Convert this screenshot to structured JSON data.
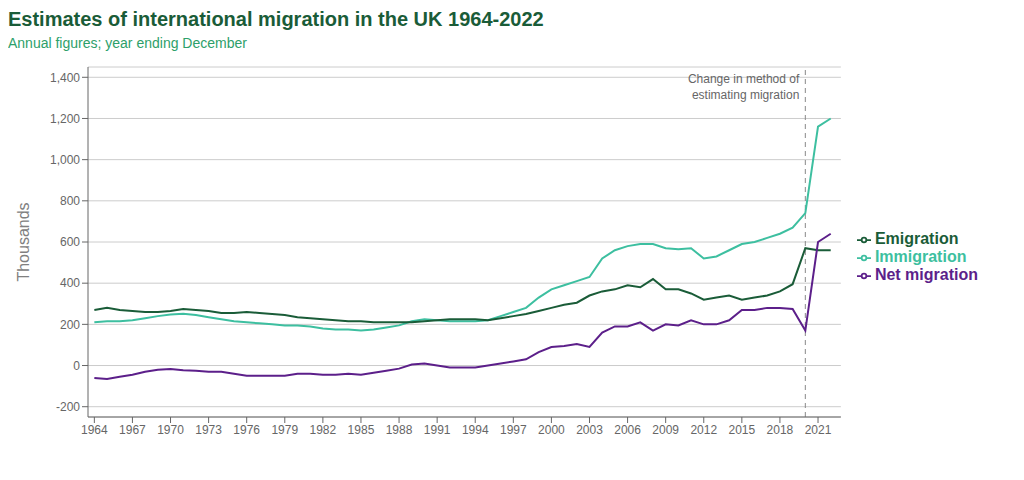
{
  "chart_data": {
    "type": "line",
    "title": "Estimates of international migration in the UK 1964-2022",
    "subtitle": "Annual figures; year ending December",
    "y_label": "Thousands",
    "x": [
      1964,
      1965,
      1966,
      1967,
      1968,
      1969,
      1970,
      1971,
      1972,
      1973,
      1974,
      1975,
      1976,
      1977,
      1978,
      1979,
      1980,
      1981,
      1982,
      1983,
      1984,
      1985,
      1986,
      1987,
      1988,
      1989,
      1990,
      1991,
      1992,
      1993,
      1994,
      1995,
      1996,
      1997,
      1998,
      1999,
      2000,
      2001,
      2002,
      2003,
      2004,
      2005,
      2006,
      2007,
      2008,
      2009,
      2010,
      2011,
      2012,
      2013,
      2014,
      2015,
      2016,
      2017,
      2018,
      2019,
      2020,
      2021,
      2022
    ],
    "series": [
      {
        "name": "Immigration",
        "color": "#3dbfa0",
        "values": [
          210,
          215,
          215,
          220,
          230,
          240,
          248,
          252,
          245,
          235,
          225,
          215,
          210,
          205,
          200,
          195,
          195,
          190,
          180,
          175,
          175,
          170,
          175,
          185,
          195,
          215,
          225,
          220,
          215,
          215,
          215,
          220,
          240,
          260,
          280,
          330,
          370,
          390,
          410,
          430,
          520,
          560,
          580,
          590,
          590,
          570,
          565,
          570,
          520,
          530,
          560,
          590,
          600,
          620,
          640,
          670,
          740,
          1160,
          1200
        ]
      },
      {
        "name": "Emigration",
        "color": "#1a5c38",
        "values": [
          270,
          280,
          270,
          265,
          260,
          260,
          265,
          275,
          270,
          265,
          255,
          255,
          260,
          255,
          250,
          245,
          235,
          230,
          225,
          220,
          215,
          215,
          210,
          210,
          210,
          210,
          215,
          220,
          225,
          225,
          225,
          220,
          230,
          240,
          250,
          265,
          280,
          295,
          305,
          340,
          360,
          370,
          390,
          380,
          420,
          370,
          370,
          350,
          320,
          330,
          340,
          320,
          330,
          340,
          360,
          395,
          570,
          560,
          560
        ]
      },
      {
        "name": "Net migration",
        "color": "#5c1f8a",
        "values": [
          -60,
          -65,
          -55,
          -45,
          -30,
          -20,
          -17,
          -23,
          -25,
          -30,
          -30,
          -40,
          -50,
          -50,
          -50,
          -50,
          -40,
          -40,
          -45,
          -45,
          -40,
          -45,
          -35,
          -25,
          -15,
          5,
          10,
          0,
          -10,
          -10,
          -10,
          0,
          10,
          20,
          30,
          65,
          90,
          95,
          105,
          90,
          160,
          190,
          190,
          210,
          170,
          200,
          195,
          220,
          200,
          200,
          220,
          270,
          270,
          280,
          280,
          275,
          170,
          600,
          640
        ]
      }
    ],
    "xlim": [
      1963.5,
      2022.8
    ],
    "xticks": [
      1964,
      1967,
      1970,
      1973,
      1976,
      1979,
      1982,
      1985,
      1988,
      1991,
      1994,
      1997,
      2000,
      2003,
      2006,
      2009,
      2012,
      2015,
      2018,
      2021
    ],
    "ylim": [
      -250,
      1450
    ],
    "yticks": [
      -200,
      0,
      200,
      400,
      600,
      800,
      {
        "value": 1000,
        "label": "1,000"
      },
      {
        "value": 1200,
        "label": "1,200"
      },
      {
        "value": 1400,
        "label": "1,400"
      }
    ],
    "grid": "y",
    "legend": "right",
    "annotations": [
      {
        "x": 2020,
        "text": "Change in method of\nestimating migration",
        "line_style": "dashed"
      }
    ]
  }
}
